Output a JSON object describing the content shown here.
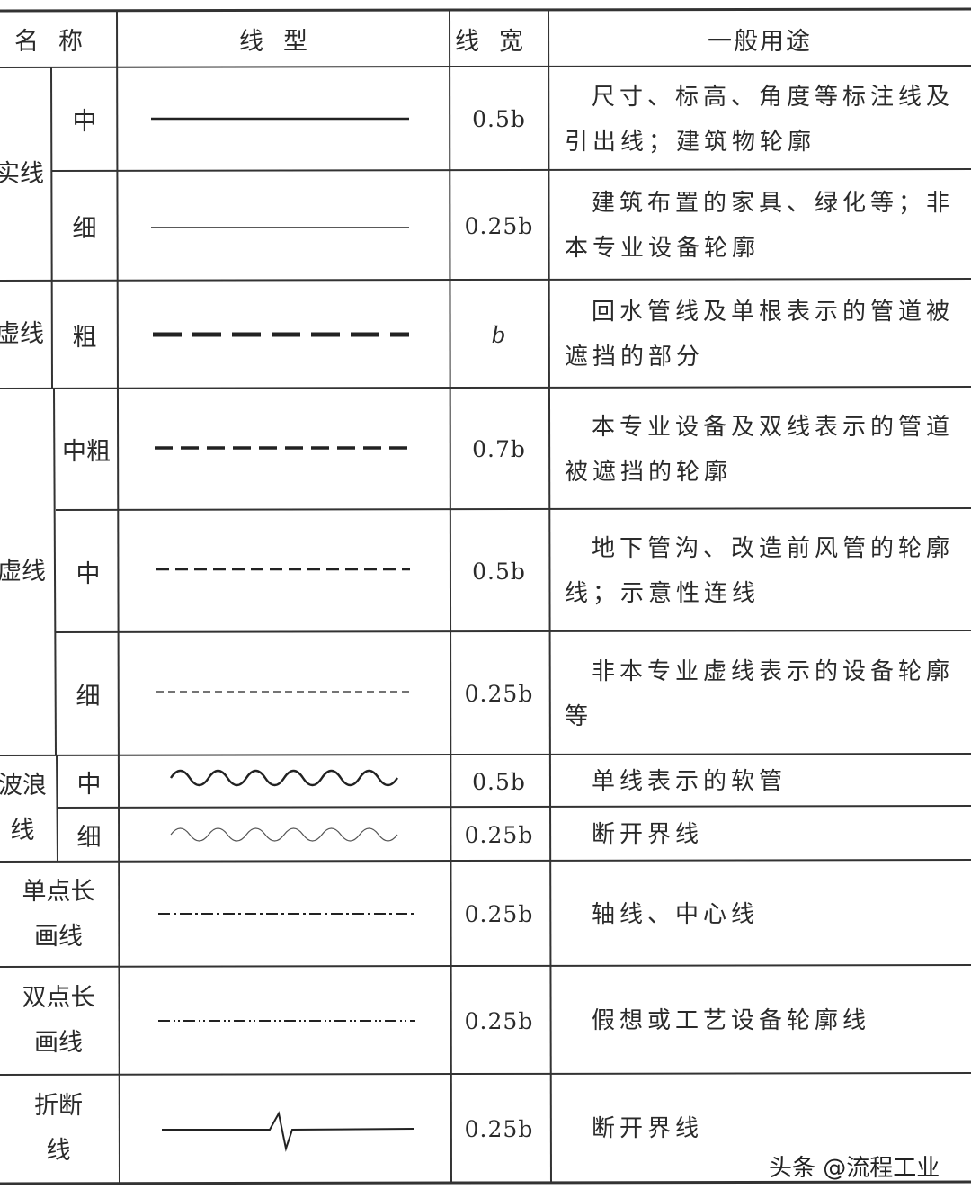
{
  "header": {
    "name": "名称",
    "linetype": "线型",
    "width": "线宽",
    "usage": "一般用途"
  },
  "groups": {
    "solid": "实线",
    "dashed_thick": "虚线",
    "dashed": "虚线",
    "wave": "波浪线",
    "single_dot": "单点长画线",
    "double_dot": "双点长画线",
    "break": "折断线"
  },
  "rows": [
    {
      "sub": "中",
      "linetype": "solid-medium",
      "width": "0.5b",
      "usage": "尺寸、标高、角度等标注线及引出线；建筑物轮廓"
    },
    {
      "sub": "细",
      "linetype": "solid-thin",
      "width": "0.25b",
      "usage": "建筑布置的家具、绿化等；非本专业设备轮廓"
    },
    {
      "sub": "粗",
      "linetype": "dashed-thick",
      "width": "b",
      "usage": "回水管线及单根表示的管道被遮挡的部分"
    },
    {
      "sub": "中粗",
      "linetype": "dashed-medium-thick",
      "width": "0.7b",
      "usage": "本专业设备及双线表示的管道被遮挡的轮廓"
    },
    {
      "sub": "中",
      "linetype": "dashed-medium",
      "width": "0.5b",
      "usage": "地下管沟、改造前风管的轮廓线；示意性连线"
    },
    {
      "sub": "细",
      "linetype": "dashed-thin",
      "width": "0.25b",
      "usage": "非本专业虚线表示的设备轮廓等"
    },
    {
      "sub": "中",
      "linetype": "wave-medium",
      "width": "0.5b",
      "usage": "单线表示的软管"
    },
    {
      "sub": "细",
      "linetype": "wave-thin",
      "width": "0.25b",
      "usage": "断开界线"
    },
    {
      "linetype": "single-dot-chain",
      "width": "0.25b",
      "usage": "轴线、中心线"
    },
    {
      "linetype": "double-dot-chain",
      "width": "0.25b",
      "usage": "假想或工艺设备轮廓线"
    },
    {
      "linetype": "break-line",
      "width": "0.25b",
      "usage": "断开界线"
    }
  ],
  "watermark": "头条 @流程工业"
}
